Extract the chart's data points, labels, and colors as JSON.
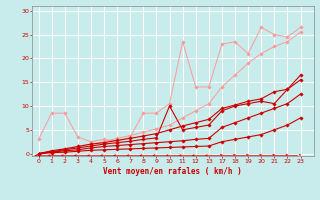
{
  "bg_color": "#c8ecec",
  "grid_color": "#ffffff",
  "xlabel": "Vent moyen/en rafales ( km/h )",
  "xlabel_color": "#cc0000",
  "tick_color": "#cc0000",
  "yticks": [
    0,
    5,
    10,
    15,
    20,
    25,
    30
  ],
  "xtick_labels": [
    "0",
    "1",
    "2",
    "3",
    "4",
    "5",
    "6",
    "7",
    "8",
    "9",
    "10",
    "11",
    "12",
    "13",
    "17",
    "18",
    "19",
    "20",
    "21",
    "22",
    "23"
  ],
  "xtick_pos": [
    0,
    1,
    2,
    3,
    4,
    5,
    6,
    7,
    8,
    9,
    10,
    11,
    12,
    13,
    14,
    15,
    16,
    17,
    18,
    19,
    20
  ],
  "xlim": [
    -0.5,
    21
  ],
  "ylim": [
    -0.5,
    31
  ],
  "lines_dark": [
    {
      "x": [
        0,
        1,
        2,
        3,
        4,
        5,
        6,
        7,
        8,
        9,
        10,
        11,
        12,
        13,
        14,
        15,
        16,
        17,
        18,
        19,
        20
      ],
      "y": [
        0,
        0.2,
        0.3,
        0.5,
        0.7,
        0.8,
        0.9,
        1.0,
        1.1,
        1.2,
        1.3,
        1.4,
        1.5,
        1.6,
        2.5,
        3.0,
        3.5,
        4.0,
        5.0,
        6.0,
        7.5
      ]
    },
    {
      "x": [
        0,
        1,
        2,
        3,
        4,
        5,
        6,
        7,
        8,
        9,
        10,
        11,
        12,
        13,
        14,
        15,
        16,
        17,
        18,
        19,
        20
      ],
      "y": [
        0,
        0.3,
        0.6,
        0.8,
        1.2,
        1.5,
        1.7,
        1.9,
        2.1,
        2.3,
        2.5,
        2.7,
        3.0,
        3.2,
        5.5,
        6.5,
        7.5,
        8.5,
        9.5,
        10.5,
        12.5
      ]
    },
    {
      "x": [
        0,
        1,
        2,
        3,
        4,
        5,
        6,
        7,
        8,
        9,
        10,
        11,
        12,
        13,
        14,
        15,
        16,
        17,
        18,
        19,
        20
      ],
      "y": [
        0,
        0.4,
        0.8,
        1.2,
        1.6,
        2.0,
        2.3,
        2.6,
        3.0,
        3.3,
        10.0,
        5.0,
        5.5,
        6.0,
        9.0,
        10.0,
        10.5,
        11.0,
        10.5,
        13.5,
        16.5
      ]
    },
    {
      "x": [
        0,
        1,
        2,
        3,
        4,
        5,
        6,
        7,
        8,
        9,
        10,
        11,
        12,
        13,
        14,
        15,
        16,
        17,
        18,
        19,
        20
      ],
      "y": [
        0,
        0.6,
        1.0,
        1.5,
        2.0,
        2.3,
        2.8,
        3.2,
        3.7,
        4.2,
        5.0,
        5.8,
        6.5,
        7.2,
        9.5,
        10.2,
        11.0,
        11.5,
        13.0,
        13.5,
        15.5
      ]
    }
  ],
  "lines_light": [
    {
      "x": [
        0,
        1,
        2,
        3,
        4,
        5,
        6,
        7,
        8,
        9,
        10,
        11,
        12,
        13,
        14,
        15,
        16,
        17,
        18,
        19,
        20
      ],
      "y": [
        3.0,
        8.5,
        8.5,
        3.5,
        2.5,
        3.0,
        2.5,
        3.5,
        8.5,
        8.5,
        10.5,
        23.5,
        14.0,
        14.0,
        23.0,
        23.5,
        21.0,
        26.5,
        25.0,
        24.5,
        26.5
      ]
    },
    {
      "x": [
        0,
        1,
        2,
        3,
        4,
        5,
        6,
        7,
        8,
        9,
        10,
        11,
        12,
        13,
        14,
        15,
        16,
        17,
        18,
        19,
        20
      ],
      "y": [
        0,
        0.5,
        1.0,
        1.5,
        2.0,
        2.5,
        3.2,
        3.8,
        4.5,
        5.2,
        6.0,
        7.5,
        9.0,
        10.5,
        14.0,
        16.5,
        19.0,
        21.0,
        22.5,
        23.5,
        25.5
      ]
    }
  ],
  "dark_color": "#cc0000",
  "light_color": "#ff9999",
  "marker": "D",
  "marker_size": 1.8,
  "linewidth_dark": 0.8,
  "linewidth_light": 0.7
}
